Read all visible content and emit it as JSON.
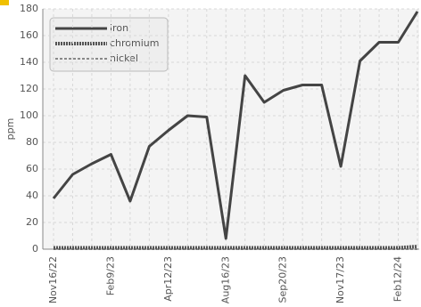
{
  "chart_data": {
    "type": "line",
    "y_label": "ppm",
    "categories": [
      "Nov16/22",
      null,
      null,
      "Feb9/23",
      null,
      null,
      "Apr12/23",
      null,
      null,
      "Aug16/23",
      null,
      null,
      "Sep20/23",
      null,
      null,
      "Nov17/23",
      null,
      null,
      "Feb12/24",
      null
    ],
    "series": [
      {
        "name": "iron",
        "color": "#444444",
        "values": [
          38,
          56,
          64,
          71,
          36,
          77,
          89,
          100,
          99,
          8,
          130,
          110,
          119,
          123,
          123,
          62,
          141,
          155,
          155,
          178
        ]
      },
      {
        "name": "chromium",
        "color": "#555555",
        "values": [
          1,
          1,
          1,
          1,
          1,
          1,
          1,
          1,
          1,
          1,
          1,
          1,
          1,
          1,
          1,
          1,
          1,
          1,
          1,
          2
        ]
      },
      {
        "name": "nickel",
        "color": "#888888",
        "values": [
          0,
          0,
          0,
          0,
          0,
          0,
          0,
          0,
          0,
          0,
          0,
          0,
          0,
          0,
          0,
          0,
          0,
          0,
          0,
          0
        ]
      }
    ],
    "ylim": [
      0,
      180
    ],
    "yticks": [
      0,
      20,
      40,
      60,
      80,
      100,
      120,
      140,
      160,
      180
    ],
    "grid": true
  }
}
